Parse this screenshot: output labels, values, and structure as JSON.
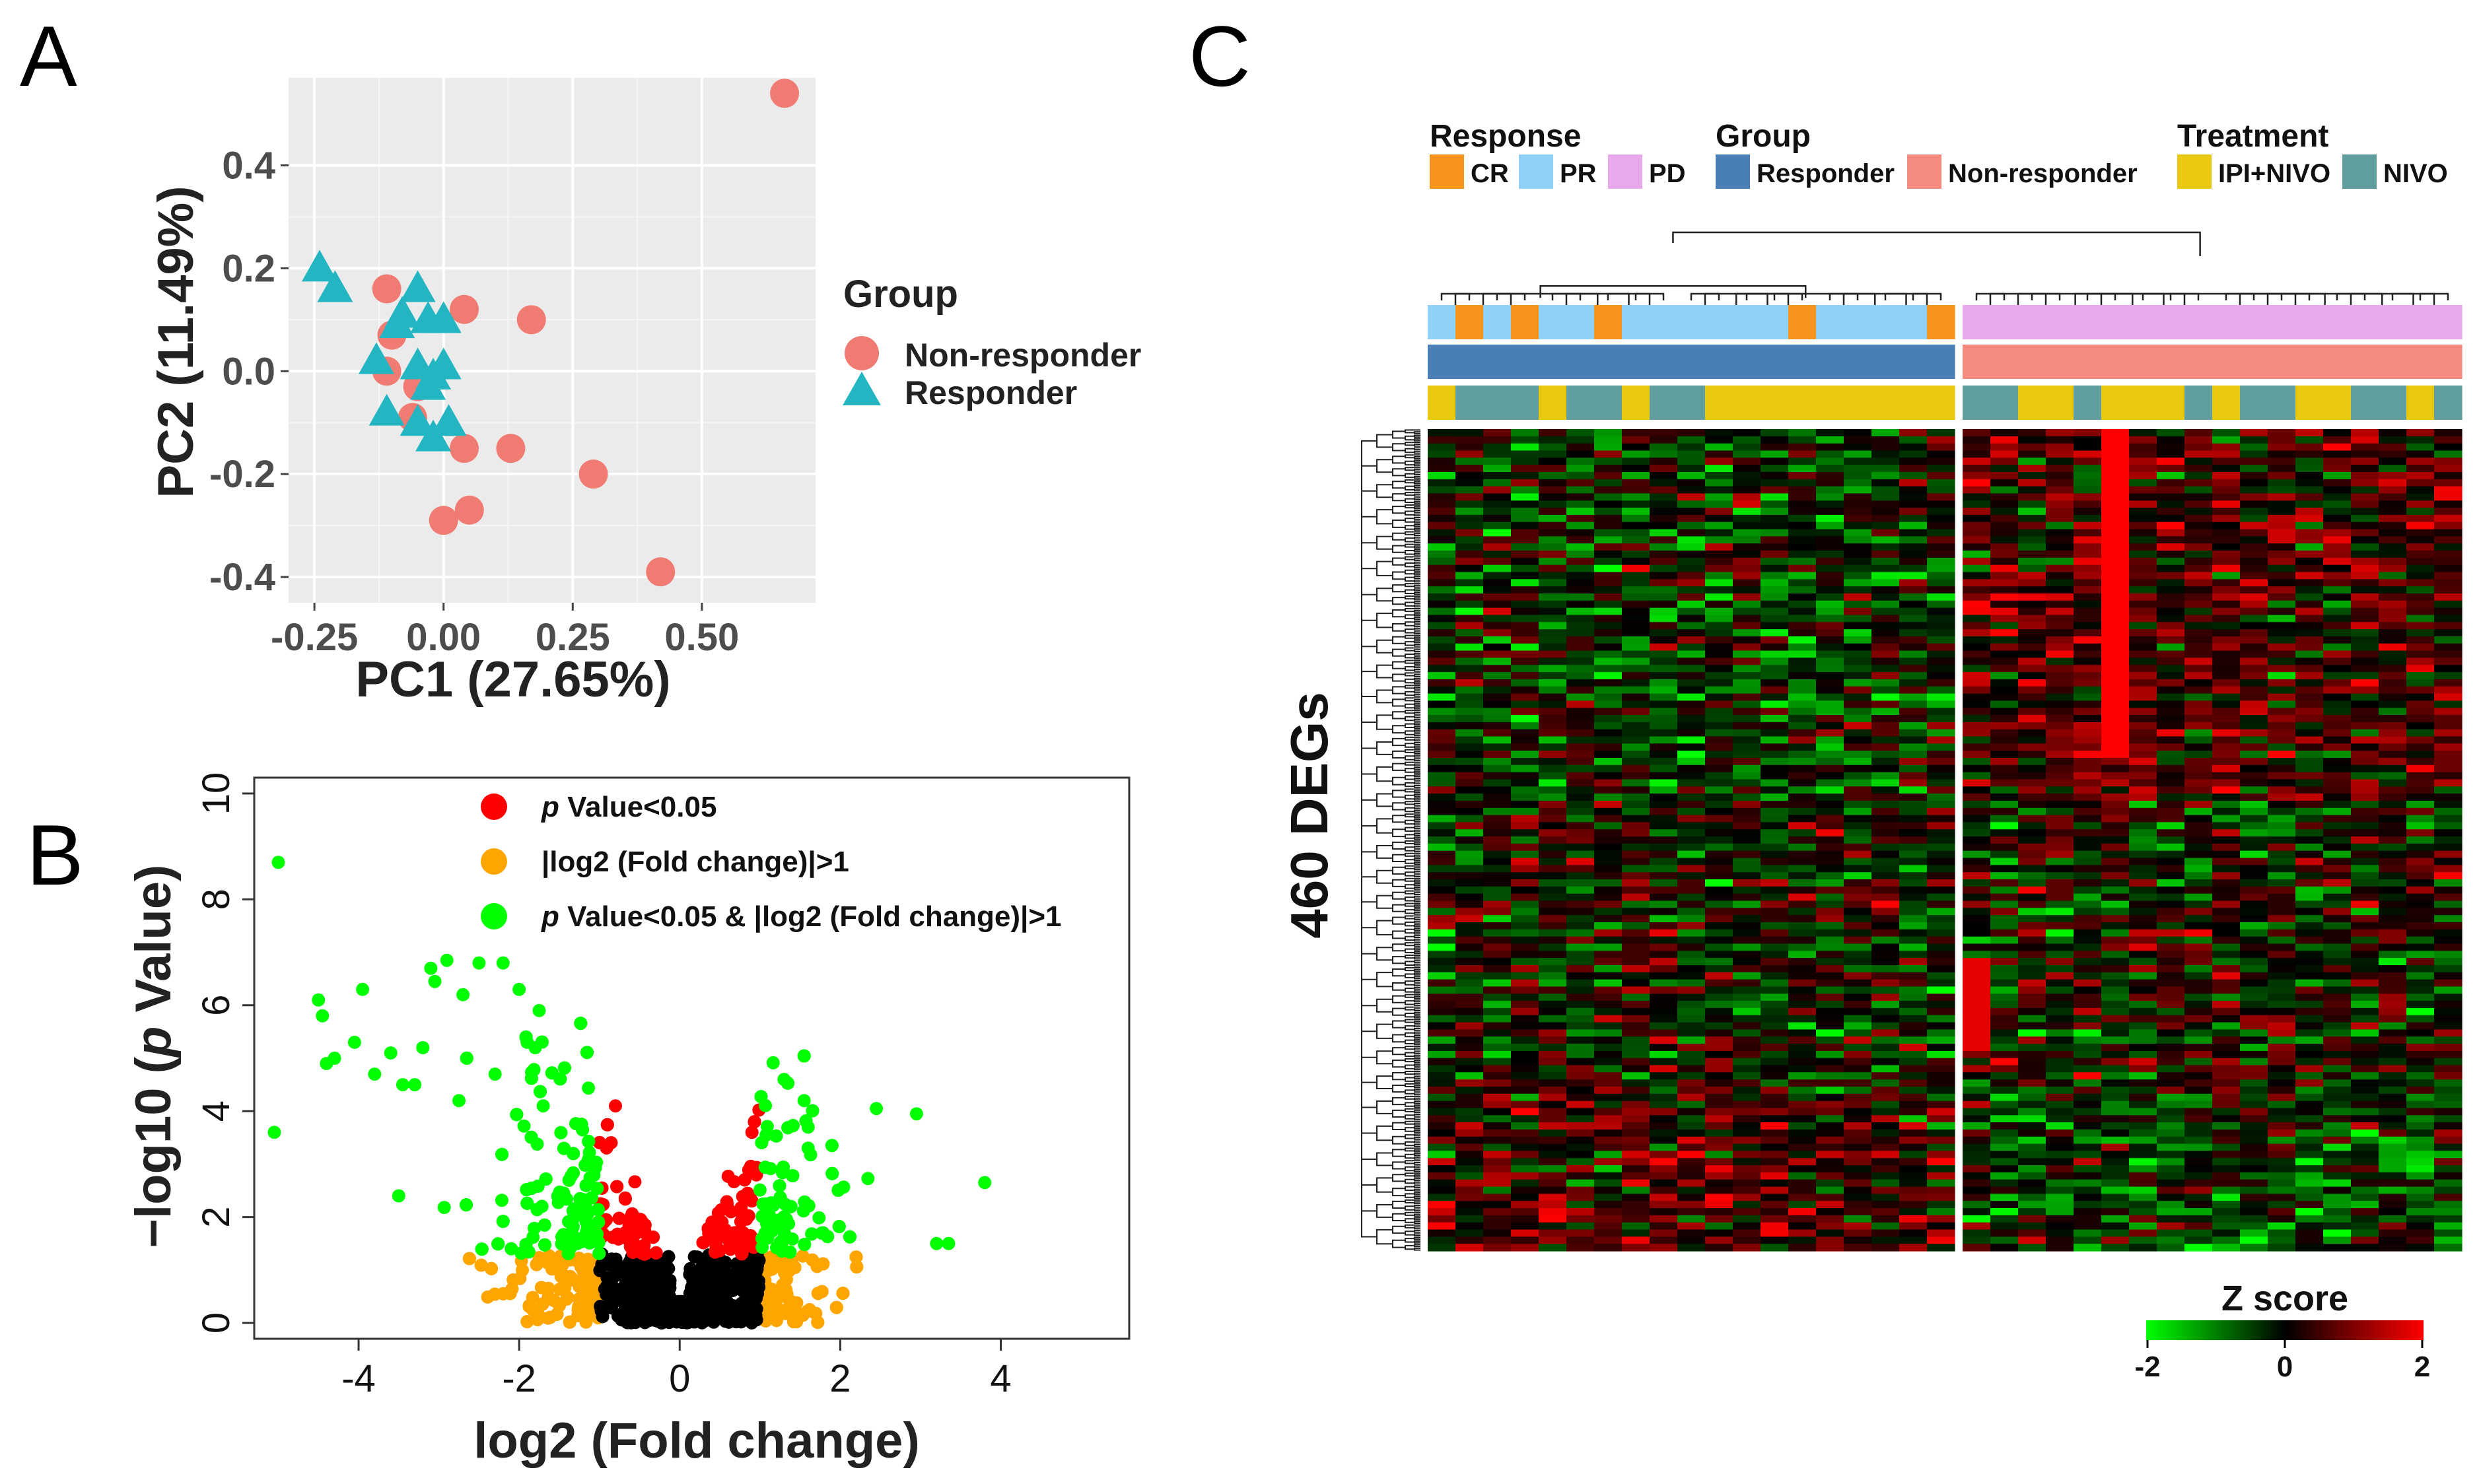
{
  "panels": {
    "a": "A",
    "b": "B",
    "c": "C"
  },
  "chart_data": [
    {
      "panel": "A",
      "type": "scatter",
      "title": "",
      "xlabel": "PC1 (27.65%)",
      "ylabel": "PC2 (11.49%)",
      "xlim": [
        -0.3,
        0.72
      ],
      "ylim": [
        -0.45,
        0.57
      ],
      "xticks": [
        -0.25,
        0.0,
        0.25,
        0.5
      ],
      "xtick_labels": [
        "-0.25",
        "0.00",
        "0.25",
        "0.50"
      ],
      "yticks": [
        -0.4,
        -0.2,
        0.0,
        0.2,
        0.4
      ],
      "ytick_labels": [
        "-0.4",
        "-0.2",
        "0.0",
        "0.2",
        "0.4"
      ],
      "grid": true,
      "background": "#ebebeb",
      "legend": {
        "title": "Group",
        "placement": "right"
      },
      "series": [
        {
          "name": "Non-responder",
          "marker": "circle",
          "color": "#f07b72",
          "points": [
            [
              0.66,
              0.54
            ],
            [
              -0.11,
              0.16
            ],
            [
              0.04,
              0.12
            ],
            [
              0.17,
              0.1
            ],
            [
              -0.1,
              0.07
            ],
            [
              -0.11,
              0.0
            ],
            [
              -0.05,
              -0.03
            ],
            [
              -0.06,
              -0.09
            ],
            [
              0.04,
              -0.15
            ],
            [
              0.13,
              -0.15
            ],
            [
              0.29,
              -0.2
            ],
            [
              0.05,
              -0.27
            ],
            [
              0.0,
              -0.29
            ],
            [
              0.42,
              -0.39
            ]
          ]
        },
        {
          "name": "Responder",
          "marker": "triangle",
          "color": "#23b6c2",
          "points": [
            [
              -0.24,
              0.2
            ],
            [
              -0.21,
              0.16
            ],
            [
              -0.05,
              0.16
            ],
            [
              -0.08,
              0.11
            ],
            [
              -0.03,
              0.1
            ],
            [
              0.0,
              0.1
            ],
            [
              -0.09,
              0.09
            ],
            [
              -0.13,
              0.02
            ],
            [
              -0.05,
              0.01
            ],
            [
              0.0,
              0.01
            ],
            [
              -0.02,
              -0.01
            ],
            [
              -0.03,
              -0.03
            ],
            [
              -0.11,
              -0.08
            ],
            [
              -0.05,
              -0.1
            ],
            [
              0.01,
              -0.1
            ],
            [
              -0.02,
              -0.13
            ]
          ]
        }
      ]
    },
    {
      "panel": "B",
      "type": "scatter",
      "title": "",
      "xlabel": "log2 (Fold change)",
      "ylabel": "−log10 (p Value)",
      "ylabel_prefix": "−log10 (",
      "ylabel_italic": "p",
      "ylabel_suffix": " Value)",
      "xlim": [
        -5.3,
        5.6
      ],
      "ylim": [
        -0.3,
        10.3
      ],
      "xticks": [
        -4,
        -2,
        0,
        2,
        4
      ],
      "xtick_labels": [
        "-4",
        "-2",
        "0",
        "2",
        "4"
      ],
      "yticks": [
        0,
        2,
        4,
        6,
        8,
        10
      ],
      "ytick_labels": [
        "0",
        "2",
        "4",
        "6",
        "8",
        "10"
      ],
      "grid": false,
      "legend": {
        "placement": "top-center",
        "entries": [
          {
            "italic": "p",
            "text": " Value<0.05",
            "color": "#ff0000"
          },
          {
            "italic": "",
            "text": "|log2 (Fold change)|>1",
            "color": "#ffa500"
          },
          {
            "italic": "p",
            "text": " Value<0.05 & |log2 (Fold change)|>1",
            "color": "#00ff00"
          }
        ]
      },
      "colors": {
        "ns": "#000000",
        "p_only": "#ff0000",
        "fc_only": "#ffa500",
        "both": "#00ff00"
      },
      "notable_points": [
        [
          -5.0,
          8.7
        ],
        [
          -5.05,
          3.6
        ],
        [
          -4.5,
          6.1
        ],
        [
          -4.45,
          5.8
        ],
        [
          -4.4,
          4.9
        ],
        [
          -4.3,
          5.0
        ],
        [
          -4.05,
          5.3
        ],
        [
          -3.95,
          6.3
        ],
        [
          -3.8,
          4.7
        ],
        [
          -3.6,
          5.1
        ],
        [
          -3.5,
          2.4
        ],
        [
          -3.45,
          4.5
        ],
        [
          -3.3,
          4.5
        ],
        [
          -3.2,
          5.2
        ],
        [
          -3.1,
          6.7
        ],
        [
          -3.05,
          6.45
        ],
        [
          -2.9,
          6.85
        ],
        [
          -2.7,
          6.2
        ],
        [
          -2.75,
          4.2
        ],
        [
          -2.5,
          6.8
        ],
        [
          -2.2,
          6.8
        ],
        [
          -2.0,
          6.3
        ],
        [
          -1.9,
          5.3
        ],
        [
          -1.8,
          5.2
        ],
        [
          -1.75,
          5.9
        ],
        [
          -1.7,
          4.1
        ],
        [
          -2.3,
          4.7
        ],
        [
          1.3,
          4.6
        ],
        [
          1.55,
          4.2
        ],
        [
          2.45,
          4.05
        ],
        [
          2.95,
          3.95
        ],
        [
          3.8,
          2.65
        ],
        [
          3.2,
          1.5
        ],
        [
          3.35,
          1.5
        ],
        [
          1.6,
          3.3
        ],
        [
          0.9,
          3.6
        ],
        [
          -0.8,
          4.1
        ]
      ],
      "bulk_points_generated": 2600
    },
    {
      "panel": "C",
      "type": "heatmap",
      "title": "",
      "ylabel": "460 DEGs",
      "rows": 460,
      "columns": 37,
      "column_split": 19,
      "row_clusters": 4,
      "color_scale": {
        "title": "Z score",
        "min": -2,
        "max": 2,
        "ticks": [
          "-2",
          "0",
          "2"
        ],
        "colors": [
          "#00ff00",
          "#000000",
          "#ff0000"
        ]
      },
      "annotation_legends": [
        {
          "title": "Response",
          "items": [
            {
              "label": "CR",
              "color": "#f7941d"
            },
            {
              "label": "PR",
              "color": "#8fd1f7"
            },
            {
              "label": "PD",
              "color": "#e8a8ec"
            }
          ]
        },
        {
          "title": "Group",
          "items": [
            {
              "label": "Responder",
              "color": "#4a7fb5"
            },
            {
              "label": "Non-responder",
              "color": "#f58b7e"
            }
          ]
        },
        {
          "title": "Treatment",
          "items": [
            {
              "label": "IPI+NIVO",
              "color": "#e9c812"
            },
            {
              "label": "NIVO",
              "color": "#5f9e9d"
            }
          ]
        }
      ],
      "response": [
        "PR",
        "CR",
        "PR",
        "CR",
        "PR",
        "PR",
        "CR",
        "PR",
        "PR",
        "PR",
        "PR",
        "PR",
        "PR",
        "CR",
        "PR",
        "PR",
        "PR",
        "PR",
        "CR",
        "PD",
        "PD",
        "PD",
        "PD",
        "PD",
        "PD",
        "PD",
        "PD",
        "PD",
        "PD",
        "PD",
        "PD",
        "PD",
        "PD",
        "PD",
        "PD",
        "PD",
        "PD"
      ],
      "group": [
        "R",
        "R",
        "R",
        "R",
        "R",
        "R",
        "R",
        "R",
        "R",
        "R",
        "R",
        "R",
        "R",
        "R",
        "R",
        "R",
        "R",
        "R",
        "R",
        "N",
        "N",
        "N",
        "N",
        "N",
        "N",
        "N",
        "N",
        "N",
        "N",
        "N",
        "N",
        "N",
        "N",
        "N",
        "N",
        "N",
        "N"
      ],
      "treatment": [
        "I",
        "N",
        "N",
        "N",
        "I",
        "N",
        "N",
        "I",
        "N",
        "N",
        "I",
        "I",
        "I",
        "I",
        "I",
        "I",
        "I",
        "I",
        "I",
        "N",
        "N",
        "I",
        "I",
        "N",
        "I",
        "I",
        "I",
        "N",
        "I",
        "N",
        "N",
        "I",
        "I",
        "N",
        "N",
        "I",
        "N"
      ]
    }
  ]
}
